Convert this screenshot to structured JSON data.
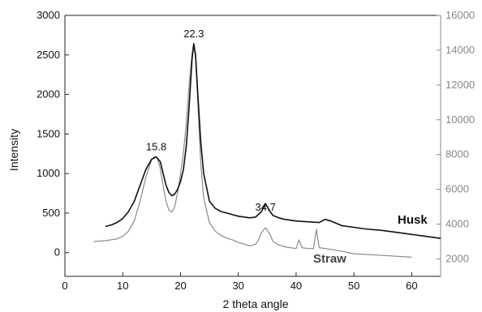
{
  "chart_data": {
    "type": "line",
    "title": "",
    "xlabel": "2 theta angle",
    "ylabel": "Intensity",
    "xlim": [
      0,
      65
    ],
    "ylim_left": [
      -300,
      3000
    ],
    "ylim_right": [
      1000,
      16000
    ],
    "xticks": [
      "0",
      "10",
      "20",
      "30",
      "40",
      "50",
      "60"
    ],
    "yticks_left": [
      "0",
      "500",
      "1000",
      "1500",
      "2000",
      "2500",
      "3000"
    ],
    "yticks_right": [
      "2000",
      "4000",
      "6000",
      "8000",
      "10000",
      "12000",
      "14000",
      "16000"
    ],
    "grid": false,
    "colors": {
      "husk": "#111111",
      "straw": "#8a8a8a",
      "axis": "#222222",
      "right_axis": "#888888"
    },
    "annotations": [
      {
        "text": "22.3",
        "x": 22.3,
        "y": 2640
      },
      {
        "text": "15.8",
        "x": 15.8,
        "y": 1210
      },
      {
        "text": "34.7",
        "x": 34.7,
        "y": 450
      }
    ],
    "series": [
      {
        "name": "Husk",
        "axis": "left",
        "x": [
          7,
          8,
          9,
          10,
          11,
          12,
          13,
          14,
          15,
          15.8,
          16.5,
          17,
          17.5,
          18,
          18.5,
          19,
          19.5,
          20,
          20.5,
          21,
          21.5,
          22,
          22.3,
          22.6,
          23,
          23.5,
          24,
          25,
          26,
          27,
          28,
          29,
          30,
          31,
          32,
          33,
          34,
          34.7,
          35.5,
          36,
          37,
          38,
          40,
          42,
          44,
          45,
          46,
          48,
          50,
          52,
          55,
          58,
          60,
          62,
          65
        ],
        "values": [
          330,
          350,
          380,
          430,
          520,
          650,
          850,
          1050,
          1180,
          1210,
          1150,
          1000,
          850,
          760,
          720,
          740,
          800,
          900,
          1050,
          1350,
          1850,
          2450,
          2640,
          2500,
          2000,
          1400,
          1000,
          650,
          560,
          520,
          500,
          480,
          460,
          450,
          440,
          450,
          520,
          620,
          520,
          470,
          440,
          420,
          400,
          390,
          380,
          420,
          400,
          340,
          320,
          300,
          280,
          250,
          230,
          210,
          180
        ]
      },
      {
        "name": "Straw",
        "axis": "right",
        "x": [
          5,
          7,
          9,
          10,
          11,
          12,
          13,
          14,
          15,
          15.5,
          16,
          16.5,
          17,
          17.5,
          18,
          18.5,
          19,
          19.5,
          20,
          20.5,
          21,
          21.5,
          22,
          22.3,
          22.6,
          23,
          23.5,
          24,
          25,
          26,
          27,
          28,
          29,
          30,
          31,
          32,
          33,
          33.5,
          34,
          34.7,
          35.5,
          36,
          37,
          38,
          39,
          40,
          40.5,
          41,
          42,
          43,
          43.5,
          44,
          45,
          47,
          50,
          55,
          60
        ],
        "values": [
          3000,
          3050,
          3150,
          3300,
          3600,
          4200,
          5300,
          6700,
          7700,
          7900,
          7800,
          7200,
          6200,
          5300,
          4800,
          4700,
          5000,
          5800,
          6900,
          8100,
          9800,
          12000,
          13800,
          14400,
          13500,
          11000,
          7500,
          5500,
          4100,
          3600,
          3350,
          3200,
          3100,
          2950,
          2850,
          2750,
          2850,
          3100,
          3500,
          3800,
          3400,
          3000,
          2800,
          2700,
          2650,
          2600,
          3100,
          2650,
          2600,
          2600,
          3700,
          2650,
          2600,
          2500,
          2300,
          2200,
          2100
        ]
      }
    ]
  }
}
